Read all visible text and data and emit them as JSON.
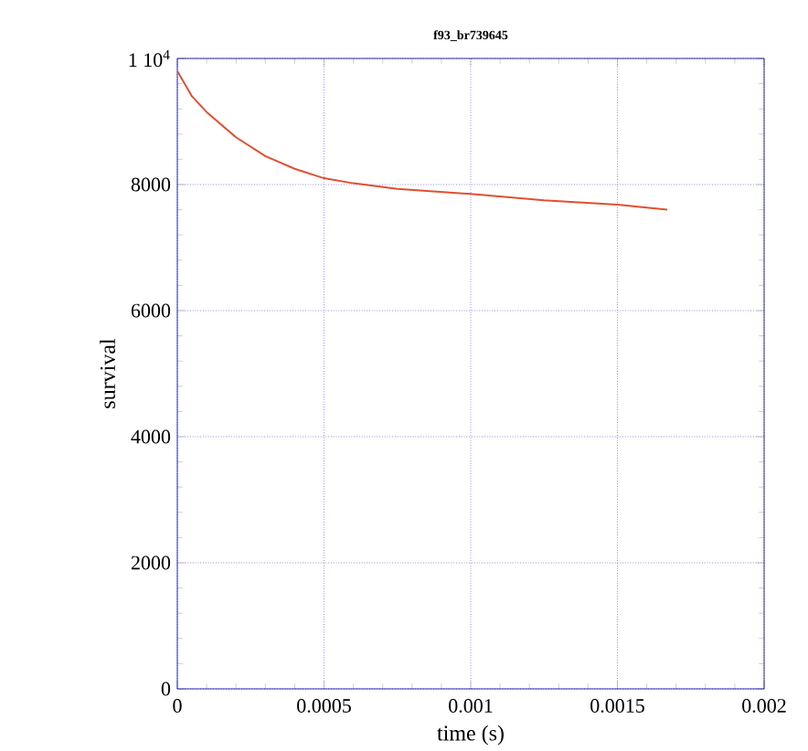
{
  "chart_data": {
    "type": "line",
    "title": "f93_br739645",
    "xlabel": "time (s)",
    "ylabel": "survival",
    "x": [
      0,
      5e-05,
      0.0001,
      0.0002,
      0.0003,
      0.0004,
      0.0005,
      0.0006,
      0.00075,
      0.001,
      0.00125,
      0.0015,
      0.00167
    ],
    "series": [
      {
        "color": "#e05030",
        "values": [
          9800,
          9400,
          9150,
          8750,
          8450,
          8250,
          8100,
          8020,
          7930,
          7850,
          7750,
          7680,
          7600
        ]
      }
    ],
    "xlim": [
      0,
      0.002
    ],
    "ylim": [
      0,
      10000
    ],
    "xticks": [
      0,
      0.0005,
      0.001,
      0.0015,
      0.002
    ],
    "yticks": [
      0,
      2000,
      4000,
      6000,
      8000,
      {
        "value": 10000,
        "label": "1 10$^{4}$"
      }
    ],
    "grid": true
  }
}
